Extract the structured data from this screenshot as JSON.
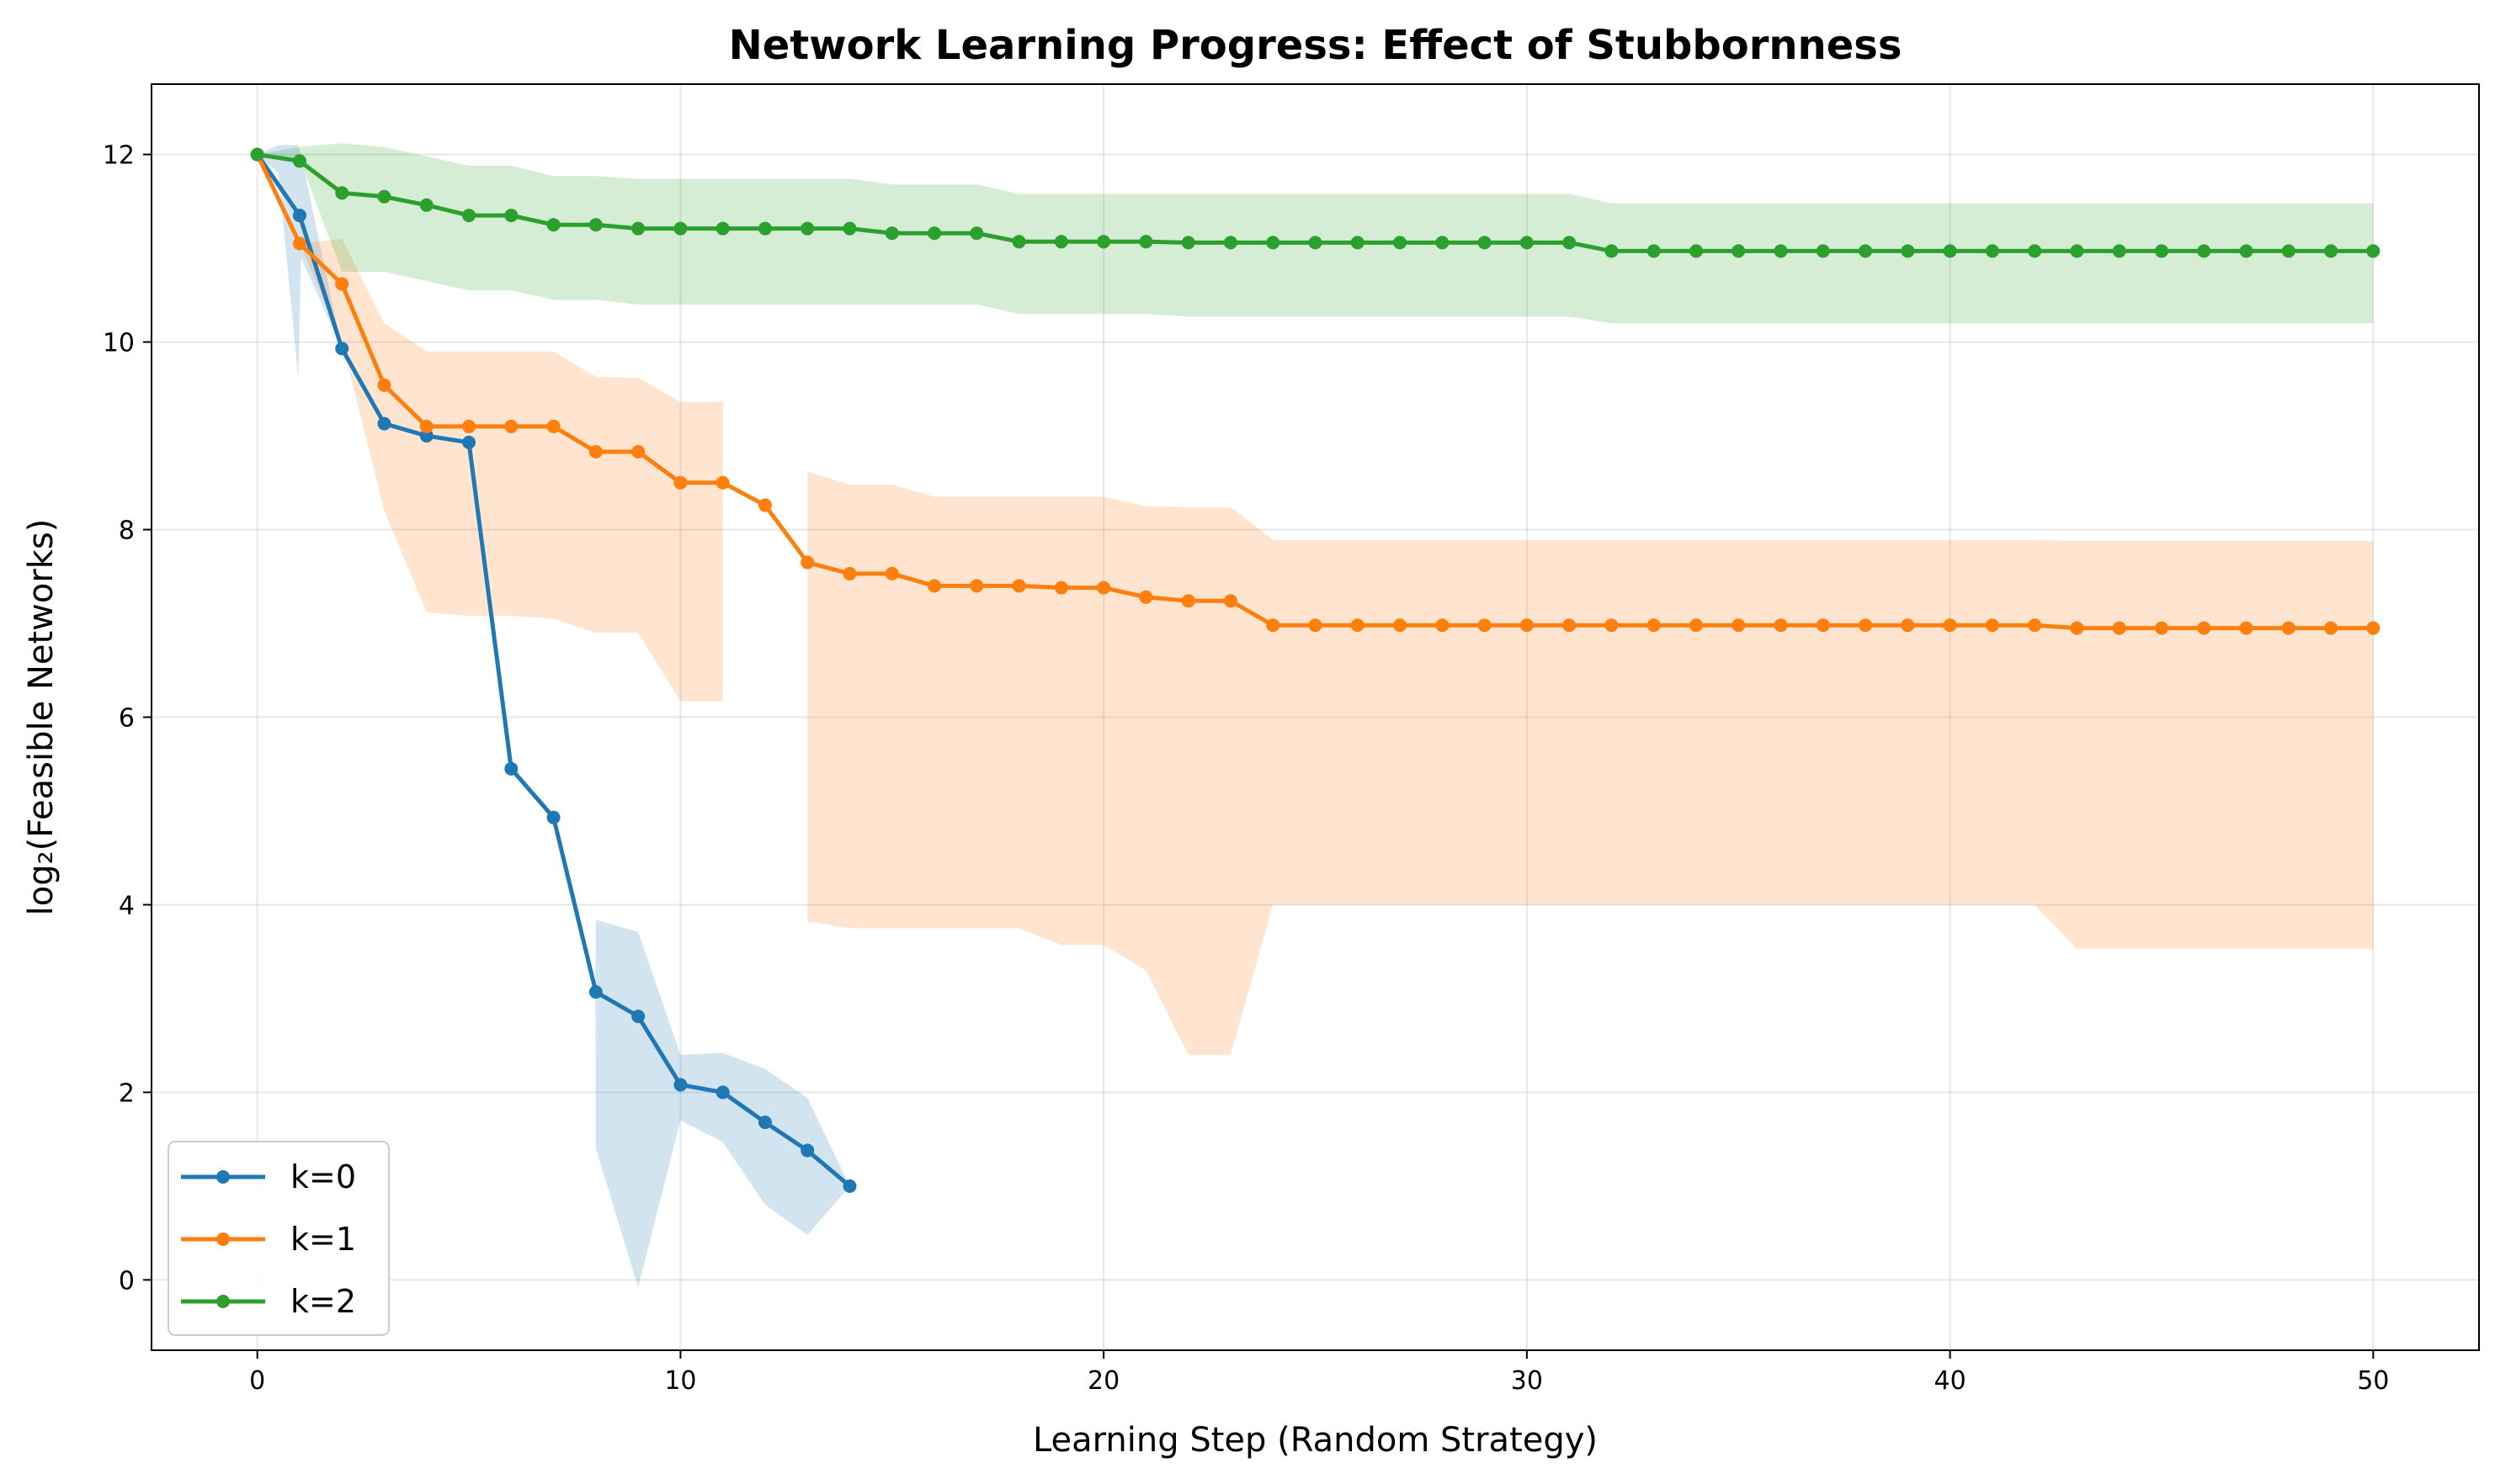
{
  "chart_data": {
    "type": "line",
    "title": "Network Learning Progress: Effect of Stubbornness",
    "xlabel": "Learning Step (Random Strategy)",
    "ylabel": "log₂(Feasible Networks)",
    "xlim": [
      -2.5,
      52.5
    ],
    "ylim": [
      -0.75,
      12.75
    ],
    "xticks": [
      0,
      10,
      20,
      30,
      40,
      50
    ],
    "yticks": [
      0,
      2,
      4,
      6,
      8,
      10,
      12
    ],
    "grid": true,
    "legend_position": "lower-left",
    "series": [
      {
        "name": "k=0",
        "color": "#1f77b4",
        "fill_color": "#1f77b4",
        "x": [
          0,
          1,
          2,
          3,
          4,
          5,
          6,
          7,
          8,
          9,
          10,
          11,
          12,
          13,
          14
        ],
        "y": [
          12.0,
          11.35,
          9.93,
          9.13,
          9.0,
          8.93,
          5.45,
          4.93,
          3.07,
          2.81,
          2.08,
          2.0,
          1.68,
          1.38,
          1.0
        ],
        "band": [
          [
            0,
            12.0,
            12.0
          ],
          [
            0.5,
            11.8,
            12.1
          ],
          [
            0.97,
            9.6,
            12.1
          ],
          [
            1.03,
            10.9,
            12.0
          ],
          [
            2,
            9.93,
            9.93
          ],
          [
            3,
            9.13,
            9.13
          ],
          [
            4,
            9.0,
            9.0
          ],
          [
            5,
            8.93,
            8.93
          ],
          [
            6,
            5.45,
            5.45
          ],
          [
            7,
            4.93,
            4.93
          ],
          [
            7.99,
            3.07,
            3.07
          ],
          [
            8,
            1.4,
            3.84
          ],
          [
            9,
            -0.08,
            3.71
          ],
          [
            10,
            1.7,
            2.4
          ],
          [
            11,
            1.47,
            2.42
          ],
          [
            12,
            0.8,
            2.25
          ],
          [
            13,
            0.48,
            1.94
          ],
          [
            14,
            1.0,
            1.0
          ]
        ]
      },
      {
        "name": "k=1",
        "color": "#ff7f0e",
        "fill_color": "#ff7f0e",
        "x": [
          0,
          1,
          2,
          3,
          4,
          5,
          6,
          7,
          8,
          9,
          10,
          11,
          12,
          13,
          14,
          15,
          16,
          17,
          18,
          19,
          20,
          21,
          22,
          23,
          24,
          25,
          26,
          27,
          28,
          29,
          30,
          31,
          32,
          33,
          34,
          35,
          36,
          37,
          38,
          39,
          40,
          41,
          42,
          43,
          44,
          45,
          46,
          47,
          48,
          49,
          50
        ],
        "y": [
          12.0,
          11.05,
          10.62,
          9.54,
          9.1,
          9.1,
          9.1,
          9.1,
          8.83,
          8.83,
          8.5,
          8.5,
          8.26,
          7.65,
          7.53,
          7.53,
          7.4,
          7.4,
          7.4,
          7.38,
          7.38,
          7.28,
          7.24,
          7.24,
          6.98,
          6.98,
          6.98,
          6.98,
          6.98,
          6.98,
          6.98,
          6.98,
          6.98,
          6.98,
          6.98,
          6.98,
          6.98,
          6.98,
          6.98,
          6.98,
          6.98,
          6.98,
          6.98,
          6.95,
          6.95,
          6.95,
          6.95,
          6.95,
          6.95,
          6.95,
          6.95
        ],
        "band_segments": [
          [
            [
              0,
              12.0,
              12.0
            ],
            [
              1,
              11.05,
              11.05
            ],
            [
              2,
              10.0,
              11.1
            ],
            [
              3,
              8.2,
              10.2
            ],
            [
              4,
              7.12,
              9.9
            ],
            [
              5,
              7.08,
              9.9
            ],
            [
              6,
              7.08,
              9.9
            ],
            [
              7,
              7.05,
              9.9
            ],
            [
              8,
              6.9,
              9.63
            ],
            [
              9,
              6.9,
              9.62
            ],
            [
              10,
              6.17,
              9.36
            ],
            [
              11,
              6.17,
              9.36
            ]
          ],
          [
            [
              13,
              3.82,
              8.62
            ],
            [
              14,
              3.75,
              8.48
            ],
            [
              15,
              3.75,
              8.48
            ],
            [
              16,
              3.75,
              8.35
            ],
            [
              17,
              3.75,
              8.35
            ],
            [
              18,
              3.75,
              8.35
            ],
            [
              19,
              3.57,
              8.35
            ],
            [
              20,
              3.57,
              8.35
            ],
            [
              21,
              3.3,
              8.25
            ],
            [
              22,
              2.4,
              8.24
            ],
            [
              23,
              2.4,
              8.24
            ],
            [
              24,
              4.0,
              7.89
            ],
            [
              25,
              4.0,
              7.89
            ],
            [
              30,
              4.0,
              7.89
            ],
            [
              35,
              4.0,
              7.89
            ],
            [
              40,
              4.0,
              7.89
            ],
            [
              42,
              4.0,
              7.89
            ],
            [
              43,
              3.53,
              7.88
            ],
            [
              44,
              3.53,
              7.88
            ],
            [
              50,
              3.53,
              7.88
            ]
          ]
        ]
      },
      {
        "name": "k=2",
        "color": "#2ca02c",
        "fill_color": "#2ca02c",
        "x": [
          0,
          1,
          2,
          3,
          4,
          5,
          6,
          7,
          8,
          9,
          10,
          11,
          12,
          13,
          14,
          15,
          16,
          17,
          18,
          19,
          20,
          21,
          22,
          23,
          24,
          25,
          26,
          27,
          28,
          29,
          30,
          31,
          32,
          33,
          34,
          35,
          36,
          37,
          38,
          39,
          40,
          41,
          42,
          43,
          44,
          45,
          46,
          47,
          48,
          49,
          50
        ],
        "y": [
          12.0,
          11.93,
          11.59,
          11.55,
          11.46,
          11.35,
          11.35,
          11.25,
          11.25,
          11.21,
          11.21,
          11.21,
          11.21,
          11.21,
          11.21,
          11.16,
          11.16,
          11.16,
          11.07,
          11.07,
          11.07,
          11.07,
          11.06,
          11.06,
          11.06,
          11.06,
          11.06,
          11.06,
          11.06,
          11.06,
          11.06,
          11.06,
          10.97,
          10.97,
          10.97,
          10.97,
          10.97,
          10.97,
          10.97,
          10.97,
          10.97,
          10.97,
          10.97,
          10.97,
          10.97,
          10.97,
          10.97,
          10.97,
          10.97,
          10.97,
          10.97
        ],
        "band": [
          [
            0,
            12.0,
            12.0
          ],
          [
            1,
            11.95,
            12.08
          ],
          [
            2,
            10.75,
            12.12
          ],
          [
            3,
            10.75,
            12.08
          ],
          [
            4,
            10.65,
            11.98
          ],
          [
            5,
            10.55,
            11.88
          ],
          [
            6,
            10.55,
            11.88
          ],
          [
            7,
            10.45,
            11.77
          ],
          [
            8,
            10.45,
            11.77
          ],
          [
            9,
            10.4,
            11.74
          ],
          [
            10,
            10.4,
            11.74
          ],
          [
            13,
            10.4,
            11.74
          ],
          [
            14,
            10.4,
            11.74
          ],
          [
            15,
            10.4,
            11.68
          ],
          [
            17,
            10.4,
            11.68
          ],
          [
            18,
            10.3,
            11.58
          ],
          [
            19,
            10.3,
            11.58
          ],
          [
            21,
            10.3,
            11.58
          ],
          [
            22,
            10.27,
            11.58
          ],
          [
            31,
            10.27,
            11.58
          ],
          [
            32,
            10.2,
            11.48
          ],
          [
            50,
            10.2,
            11.48
          ]
        ]
      }
    ]
  }
}
